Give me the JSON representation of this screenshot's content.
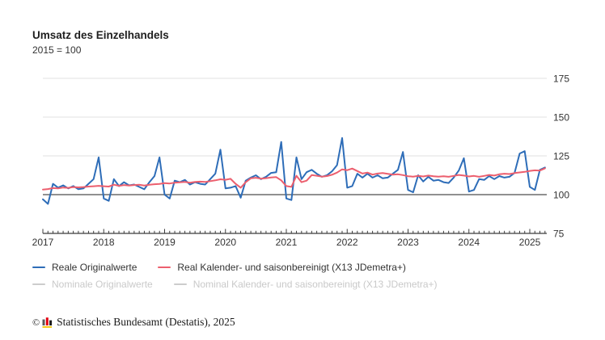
{
  "header": {
    "title": "Umsatz des Einzelhandels",
    "subtitle": "2015 = 100"
  },
  "chart_data": {
    "type": "line",
    "title": "Umsatz des Einzelhandels",
    "subtitle": "2015 = 100",
    "x_unit": "month",
    "x_start": "2017-01",
    "x_end": "2025-04",
    "x_tick_labels": [
      "2017",
      "2018",
      "2019",
      "2020",
      "2021",
      "2022",
      "2023",
      "2024",
      "2025"
    ],
    "y_ticks": [
      75,
      100,
      125,
      150,
      175
    ],
    "ylim": [
      75,
      175
    ],
    "baseline": 100,
    "grid": true,
    "legend_position": "bottom",
    "series": [
      {
        "name": "Reale Originalwerte",
        "color": "#2e6db8",
        "values": [
          97,
          94,
          107,
          104.5,
          106,
          104,
          105.5,
          103.5,
          104,
          107,
          110,
          124,
          97.5,
          96,
          110,
          105.5,
          108,
          106,
          106.5,
          105,
          103.5,
          108,
          112,
          124,
          100,
          97.5,
          109,
          108,
          109.5,
          106.5,
          108,
          107,
          106.5,
          110,
          113.5,
          129,
          104,
          104.5,
          105.5,
          98,
          109,
          111,
          112.5,
          110,
          111.5,
          114,
          114.5,
          134,
          97.5,
          96.5,
          124,
          110,
          114.5,
          116,
          113.5,
          111.5,
          112.5,
          115,
          119,
          136.5,
          104.5,
          105.5,
          113.5,
          111,
          113.5,
          111,
          112.5,
          110.5,
          111,
          113.5,
          116,
          127.5,
          103,
          101.5,
          112.5,
          108.5,
          111.5,
          109,
          109.5,
          108,
          107.5,
          111,
          115.5,
          123.5,
          102,
          103,
          110,
          109.5,
          112,
          110,
          112,
          111,
          111.5,
          114,
          126.5,
          128,
          105,
          103,
          116,
          117.5
        ]
      },
      {
        "name": "Real Kalender- und saisonbereinigt (X13 JDemetra+)",
        "color": "#ec5f6e",
        "values": [
          103.3,
          103.6,
          104.2,
          104.0,
          104.6,
          104.4,
          104.9,
          104.7,
          104.9,
          105.2,
          105.4,
          105.7,
          105.4,
          105.2,
          106.4,
          105.7,
          106.2,
          105.9,
          106.2,
          106.4,
          105.9,
          106.4,
          106.7,
          106.9,
          107.4,
          107.2,
          107.7,
          107.9,
          108.2,
          107.7,
          108.2,
          108.4,
          108.2,
          108.7,
          109.2,
          109.9,
          109.6,
          110.2,
          107.0,
          104.5,
          108.0,
          110.5,
          110.9,
          110.3,
          110.6,
          111.1,
          111.3,
          109.2,
          105.5,
          105.0,
          112.2,
          108.0,
          109.0,
          112.6,
          112.2,
          111.6,
          112.0,
          112.8,
          114.2,
          116.3,
          115.8,
          116.8,
          115.2,
          113.6,
          114.2,
          112.9,
          113.6,
          113.9,
          113.4,
          112.9,
          113.1,
          112.6,
          111.9,
          111.6,
          112.1,
          111.7,
          112.3,
          111.9,
          111.6,
          111.9,
          111.5,
          112.1,
          112.7,
          112.3,
          111.7,
          112.1,
          111.5,
          112.1,
          112.7,
          112.3,
          113.1,
          113.5,
          113.3,
          113.9,
          114.3,
          114.7,
          115.3,
          115.7,
          115.5,
          117.0
        ]
      }
    ],
    "disabled_series": [
      "Nominale Originalwerte",
      "Nominal Kalender- und saisonbereinigt (X13 JDemetra+)"
    ]
  },
  "legend": {
    "items": [
      {
        "label": "Reale Originalwerte",
        "color": "#2e6db8",
        "enabled": true
      },
      {
        "label": "Real Kalender- und saisonbereinigt (X13 JDemetra+)",
        "color": "#ec5f6e",
        "enabled": true
      },
      {
        "label": "Nominale Originalwerte",
        "color": "#cccccc",
        "enabled": false
      },
      {
        "label": "Nominal Kalender- und saisonbereinigt (X13 JDemetra+)",
        "color": "#cccccc",
        "enabled": false
      }
    ]
  },
  "footer": {
    "copyright": "©",
    "text": "Statistisches Bundesamt (Destatis), 2025"
  },
  "colors": {
    "grid": "#e0e0e0",
    "baseline_100": "#6b6b6b",
    "axis": "#3c3c3c",
    "tick_text": "#333333",
    "disabled_text": "#c9c9c9",
    "logo_gray": "#595959",
    "logo_red": "#e3000f",
    "logo_black": "#1a1a1a",
    "logo_yellow": "#f5c400"
  }
}
